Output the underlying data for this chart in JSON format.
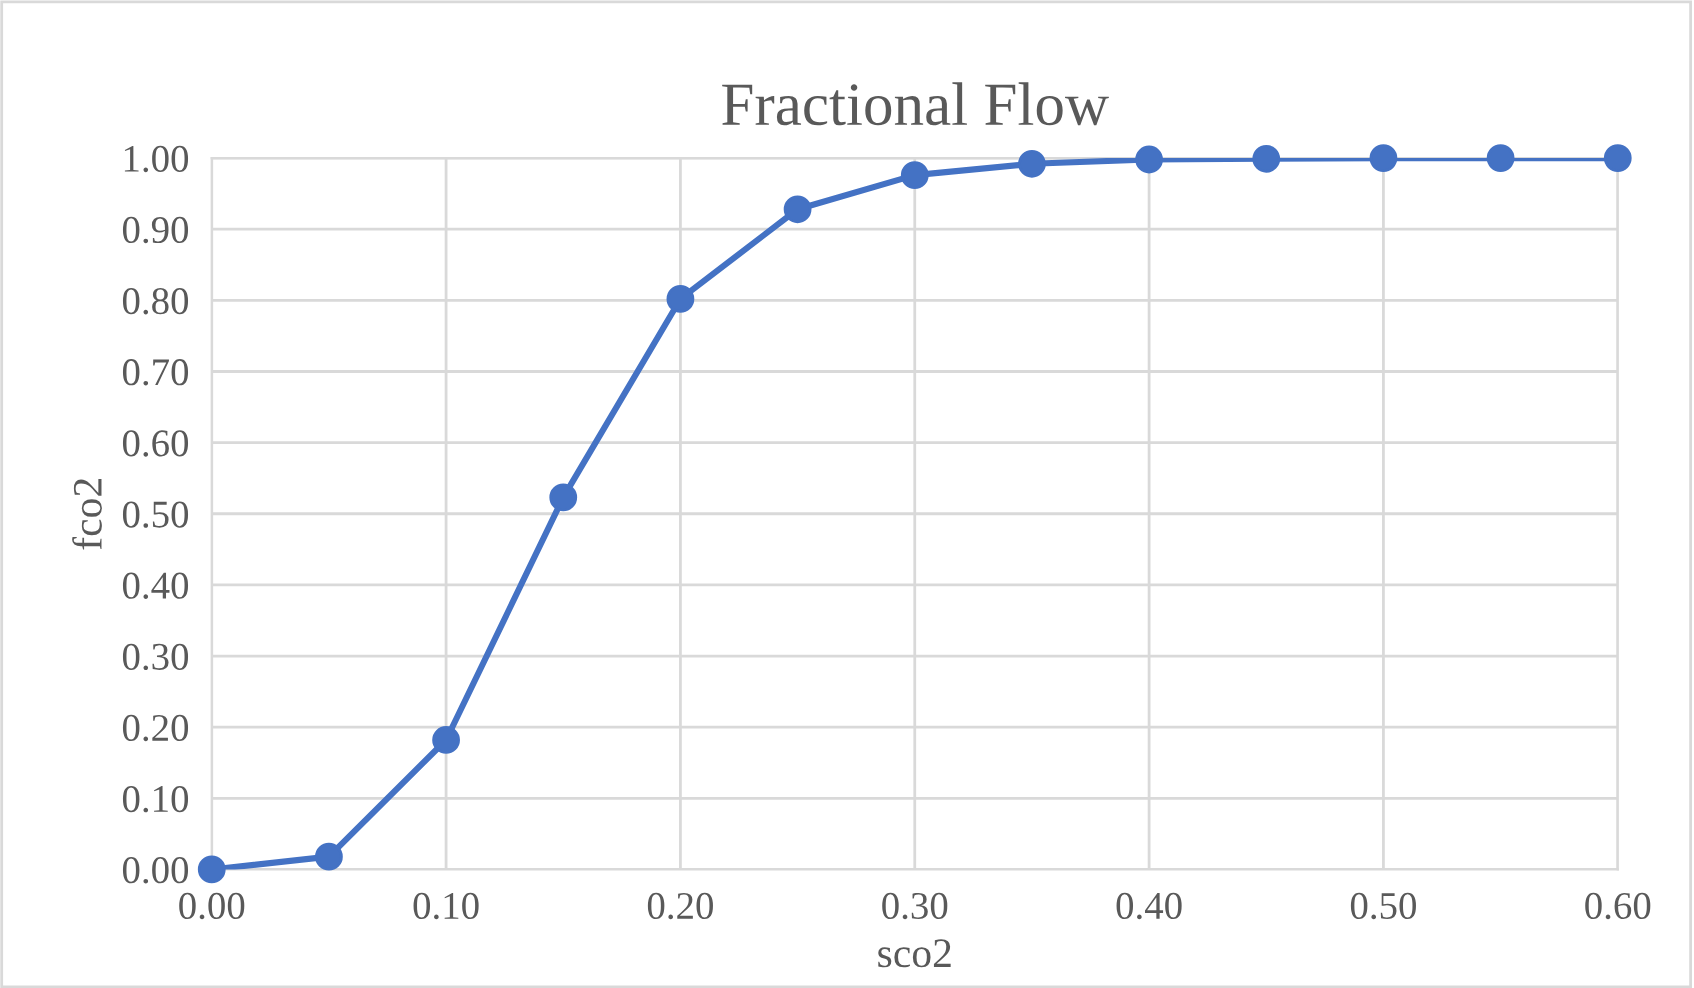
{
  "chart_data": {
    "type": "line",
    "title": "Fractional Flow",
    "xlabel": "sco2",
    "ylabel": "fco2",
    "x": [
      0.0,
      0.05,
      0.1,
      0.15,
      0.2,
      0.25,
      0.3,
      0.35,
      0.4,
      0.45,
      0.5,
      0.55,
      0.6
    ],
    "series": [
      {
        "color": "#4472c4",
        "values": [
          0.0,
          0.018,
          0.182,
          0.523,
          0.802,
          0.928,
          0.976,
          0.992,
          0.998,
          0.999,
          1.0,
          1.0,
          1.0
        ]
      }
    ],
    "xlim": [
      0.0,
      0.6
    ],
    "ylim": [
      0.0,
      1.0
    ],
    "xticks": [
      {
        "value": 0.0,
        "label": "0.00"
      },
      {
        "value": 0.1,
        "label": "0.10"
      },
      {
        "value": 0.2,
        "label": "0.20"
      },
      {
        "value": 0.3,
        "label": "0.30"
      },
      {
        "value": 0.4,
        "label": "0.40"
      },
      {
        "value": 0.5,
        "label": "0.50"
      },
      {
        "value": 0.6,
        "label": "0.60"
      }
    ],
    "yticks": [
      {
        "value": 0.0,
        "label": "0.00"
      },
      {
        "value": 0.1,
        "label": "0.10"
      },
      {
        "value": 0.2,
        "label": "0.20"
      },
      {
        "value": 0.3,
        "label": "0.30"
      },
      {
        "value": 0.4,
        "label": "0.40"
      },
      {
        "value": 0.5,
        "label": "0.50"
      },
      {
        "value": 0.6,
        "label": "0.60"
      },
      {
        "value": 0.7,
        "label": "0.70"
      },
      {
        "value": 0.8,
        "label": "0.80"
      },
      {
        "value": 0.9,
        "label": "0.90"
      },
      {
        "value": 1.0,
        "label": "1.00"
      }
    ],
    "grid": true,
    "marker": "circle",
    "line_style": "solid"
  }
}
